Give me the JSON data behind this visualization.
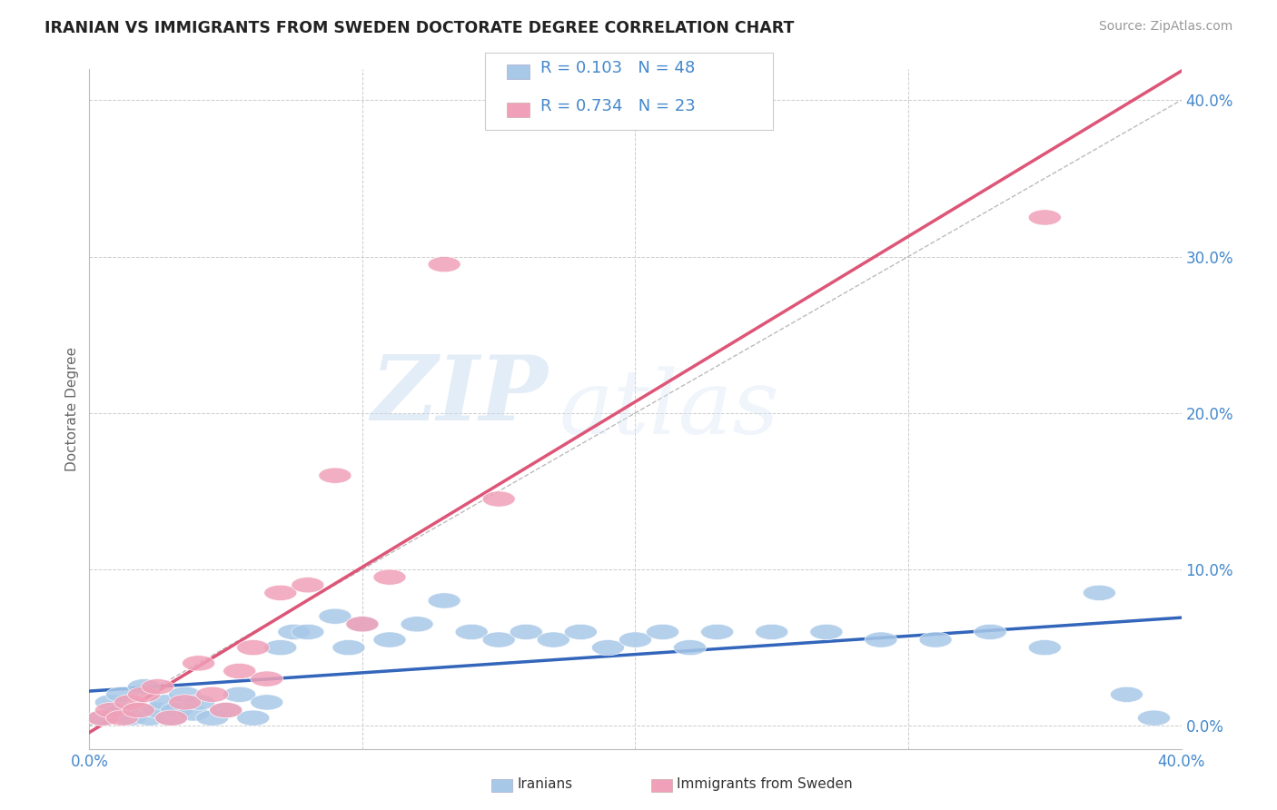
{
  "title": "IRANIAN VS IMMIGRANTS FROM SWEDEN DOCTORATE DEGREE CORRELATION CHART",
  "source": "Source: ZipAtlas.com",
  "ylabel": "Doctorate Degree",
  "ytick_labels": [
    "0.0%",
    "10.0%",
    "20.0%",
    "30.0%",
    "40.0%"
  ],
  "ytick_values": [
    0.0,
    0.1,
    0.2,
    0.3,
    0.4
  ],
  "xrange": [
    0.0,
    0.4
  ],
  "yrange": [
    -0.015,
    0.42
  ],
  "iranians_R": 0.103,
  "iranians_N": 48,
  "sweden_R": 0.734,
  "sweden_N": 23,
  "blue_color": "#A8C8E8",
  "pink_color": "#F0A0B8",
  "blue_line_color": "#3366BB",
  "pink_line_color": "#DD5577",
  "diag_line_color": "#bbbbbb",
  "title_color": "#222222",
  "axis_label_color": "#4488CC",
  "watermark_zip": "ZIP",
  "watermark_atlas": "atlas",
  "iranians_x": [
    0.005,
    0.008,
    0.01,
    0.012,
    0.015,
    0.018,
    0.02,
    0.022,
    0.025,
    0.028,
    0.03,
    0.032,
    0.035,
    0.038,
    0.04,
    0.045,
    0.05,
    0.055,
    0.06,
    0.065,
    0.07,
    0.075,
    0.08,
    0.09,
    0.095,
    0.1,
    0.11,
    0.12,
    0.13,
    0.14,
    0.15,
    0.16,
    0.17,
    0.18,
    0.19,
    0.2,
    0.21,
    0.22,
    0.23,
    0.25,
    0.27,
    0.29,
    0.31,
    0.33,
    0.35,
    0.37,
    0.38,
    0.39
  ],
  "iranians_y": [
    0.005,
    0.015,
    0.008,
    0.02,
    0.005,
    0.01,
    0.025,
    0.005,
    0.01,
    0.015,
    0.005,
    0.01,
    0.02,
    0.008,
    0.015,
    0.005,
    0.01,
    0.02,
    0.005,
    0.015,
    0.05,
    0.06,
    0.06,
    0.07,
    0.05,
    0.065,
    0.055,
    0.065,
    0.08,
    0.06,
    0.055,
    0.06,
    0.055,
    0.06,
    0.05,
    0.055,
    0.06,
    0.05,
    0.06,
    0.06,
    0.06,
    0.055,
    0.055,
    0.06,
    0.05,
    0.085,
    0.02,
    0.005
  ],
  "sweden_x": [
    0.005,
    0.008,
    0.012,
    0.015,
    0.018,
    0.02,
    0.025,
    0.03,
    0.035,
    0.04,
    0.045,
    0.05,
    0.055,
    0.06,
    0.065,
    0.07,
    0.08,
    0.09,
    0.1,
    0.11,
    0.13,
    0.15,
    0.35
  ],
  "sweden_y": [
    0.005,
    0.01,
    0.005,
    0.015,
    0.01,
    0.02,
    0.025,
    0.005,
    0.015,
    0.04,
    0.02,
    0.01,
    0.035,
    0.05,
    0.03,
    0.085,
    0.09,
    0.16,
    0.065,
    0.095,
    0.295,
    0.145,
    0.325
  ]
}
